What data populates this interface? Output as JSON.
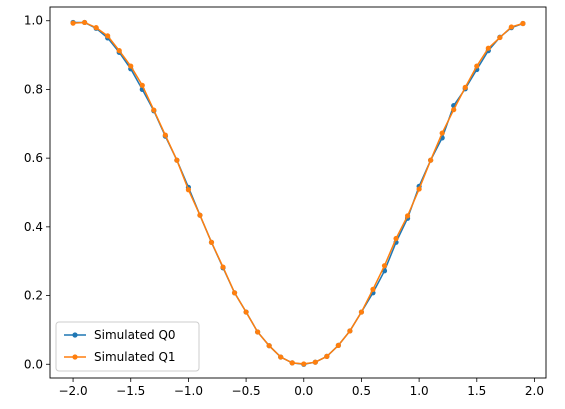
{
  "chart_data": {
    "type": "line",
    "title": "",
    "xlabel": "",
    "ylabel": "",
    "xlim": [
      -2.2,
      2.1
    ],
    "ylim": [
      -0.04,
      1.04
    ],
    "x_ticks": [
      "−2.0",
      "−1.5",
      "−1.0",
      "−0.5",
      "0.0",
      "0.5",
      "1.0",
      "1.5",
      "2.0"
    ],
    "y_ticks": [
      "0.0",
      "0.2",
      "0.4",
      "0.6",
      "0.8",
      "1.0"
    ],
    "grid": false,
    "legend_position": "lower-left",
    "x": [
      -2.0,
      -1.9,
      -1.8,
      -1.7,
      -1.6,
      -1.5,
      -1.4,
      -1.3,
      -1.2,
      -1.1,
      -1.0,
      -0.9,
      -0.8,
      -0.7,
      -0.6,
      -0.5,
      -0.4,
      -0.3,
      -0.2,
      -0.1,
      0.0,
      0.1,
      0.2,
      0.3,
      0.4,
      0.5,
      0.6,
      0.7,
      0.8,
      0.9,
      1.0,
      1.1,
      1.2,
      1.3,
      1.4,
      1.5,
      1.6,
      1.7,
      1.8,
      1.9
    ],
    "series": [
      {
        "name": "Simulated Q0",
        "color": "#1f77b4",
        "values": [
          0.995,
          0.995,
          0.978,
          0.95,
          0.908,
          0.86,
          0.8,
          0.738,
          0.664,
          0.594,
          0.515,
          0.434,
          0.355,
          0.281,
          0.208,
          0.152,
          0.094,
          0.054,
          0.021,
          0.004,
          0.0,
          0.006,
          0.023,
          0.055,
          0.097,
          0.152,
          0.208,
          0.272,
          0.355,
          0.425,
          0.518,
          0.594,
          0.659,
          0.753,
          0.802,
          0.858,
          0.913,
          0.952,
          0.98,
          0.992
        ]
      },
      {
        "name": "Simulated Q1",
        "color": "#ff7f0e",
        "values": [
          0.993,
          0.995,
          0.98,
          0.956,
          0.913,
          0.868,
          0.812,
          0.74,
          0.667,
          0.594,
          0.508,
          0.434,
          0.355,
          0.283,
          0.208,
          0.152,
          0.094,
          0.054,
          0.021,
          0.004,
          0.001,
          0.006,
          0.023,
          0.055,
          0.097,
          0.152,
          0.218,
          0.287,
          0.366,
          0.432,
          0.51,
          0.594,
          0.673,
          0.741,
          0.806,
          0.868,
          0.92,
          0.951,
          0.982,
          0.992
        ]
      }
    ]
  }
}
